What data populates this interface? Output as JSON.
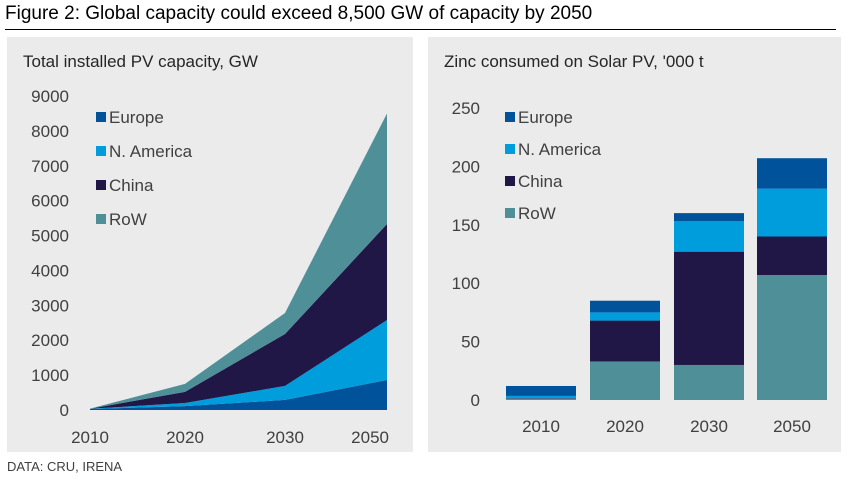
{
  "figure": {
    "title": "Figure 2: Global capacity could exceed 8,500 GW of capacity by 2050",
    "source": "DATA: CRU, IRENA"
  },
  "colors": {
    "Europe": "#00529b",
    "N. America": "#009ddc",
    "China": "#201747",
    "RoW": "#4f9098"
  },
  "chart_data": [
    {
      "type": "area",
      "stacked": true,
      "title": "Total installed PV capacity, GW",
      "xlabel": "",
      "ylabel": "",
      "x": [
        "2010",
        "2020",
        "2030",
        "2050"
      ],
      "ylim": [
        0,
        9000
      ],
      "yticks": [
        0,
        1000,
        2000,
        3000,
        4000,
        5000,
        6000,
        7000,
        8000,
        9000
      ],
      "grid": false,
      "legend": {
        "position": "top-left",
        "entries": [
          "Europe",
          "N. America",
          "China",
          "RoW"
        ]
      },
      "series": [
        {
          "name": "Europe",
          "values": [
            30,
            110,
            290,
            860
          ]
        },
        {
          "name": "N. America",
          "values": [
            5,
            90,
            400,
            1720
          ]
        },
        {
          "name": "China",
          "values": [
            1,
            320,
            1490,
            2750
          ]
        },
        {
          "name": "RoW",
          "values": [
            4,
            230,
            600,
            3170
          ]
        }
      ]
    },
    {
      "type": "bar",
      "stacked": true,
      "title": "Zinc consumed on Solar PV, '000 t",
      "xlabel": "",
      "ylabel": "",
      "categories": [
        "2010",
        "2020",
        "2030",
        "2050"
      ],
      "ylim": [
        0,
        250
      ],
      "yticks": [
        0,
        50,
        100,
        150,
        200,
        250
      ],
      "grid": false,
      "legend": {
        "position": "top-left",
        "entries": [
          "Europe",
          "N. America",
          "China",
          "RoW"
        ]
      },
      "series": [
        {
          "name": "RoW",
          "values": [
            1,
            33,
            30,
            107
          ]
        },
        {
          "name": "China",
          "values": [
            0.5,
            35,
            97,
            33
          ]
        },
        {
          "name": "N. America",
          "values": [
            2,
            7,
            26,
            41
          ]
        },
        {
          "name": "Europe",
          "values": [
            8.5,
            10,
            7,
            26
          ]
        }
      ]
    }
  ]
}
